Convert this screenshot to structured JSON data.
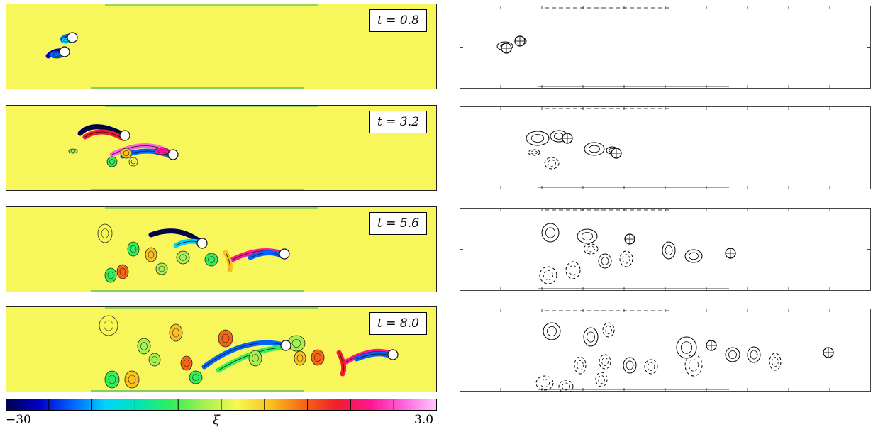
{
  "panels": [
    {
      "time_label": "t = 0.8"
    },
    {
      "time_label": "t = 3.2"
    },
    {
      "time_label": "t = 5.6"
    },
    {
      "time_label": "t = 8.0"
    }
  ],
  "colorbar": {
    "min_label": "−30",
    "max_label": "3.0",
    "symbol": "ξ",
    "colors": [
      "#000050",
      "#0000c8",
      "#0064ff",
      "#00d2ff",
      "#00e6b4",
      "#32f05a",
      "#a8f050",
      "#f8f850",
      "#f8c020",
      "#f86414",
      "#f01e2d",
      "#ff1493",
      "#ff64dc",
      "#ffc8ff"
    ]
  },
  "colors": {
    "field_background": "#f7f75c",
    "cylinder": "#ffffff"
  }
}
